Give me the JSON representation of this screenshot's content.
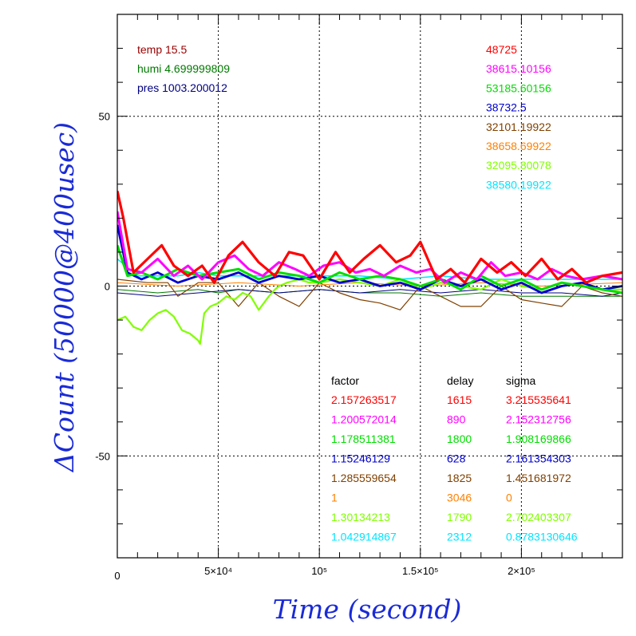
{
  "chart_data": {
    "type": "line",
    "xlabel": "Time (second)",
    "ylabel": "ΔCount (50000@400usec)",
    "xlim": [
      0,
      250000
    ],
    "ylim": [
      -80,
      80
    ],
    "x_tick_labels": [
      "0",
      "5×10⁴",
      "10⁵",
      "1.5×10⁵",
      "2×10⁵"
    ],
    "x_ticks": [
      0,
      50000,
      100000,
      150000,
      200000
    ],
    "y_tick_labels": [
      "-50",
      "0",
      "50"
    ],
    "y_ticks": [
      -50,
      0,
      50
    ],
    "grid": true,
    "env": [
      {
        "label": "temp 15.5",
        "color": "#990000"
      },
      {
        "label": "humi 4.699999809",
        "color": "#007a00"
      },
      {
        "label": "pres 1003.200012",
        "color": "#000080"
      }
    ],
    "baselines": [
      {
        "value": "48725",
        "color": "#ff0000"
      },
      {
        "value": "38615.10156",
        "color": "#ff00ff"
      },
      {
        "value": "53185.60156",
        "color": "#00dd00"
      },
      {
        "value": "38732.5",
        "color": "#0000cc"
      },
      {
        "value": "32101.19922",
        "color": "#804000"
      },
      {
        "value": "38658.69922",
        "color": "#ff8000"
      },
      {
        "value": "32095.80078",
        "color": "#80ff00"
      },
      {
        "value": "38580.19922",
        "color": "#00e5ff"
      }
    ],
    "table_headers": {
      "factor": "factor",
      "delay": "delay",
      "sigma": "sigma"
    },
    "table_rows": [
      {
        "factor": "2.157263517",
        "delay": "1615",
        "sigma": "3.215535641",
        "color": "#ff0000"
      },
      {
        "factor": "1.200572014",
        "delay": "890",
        "sigma": "2.152312756",
        "color": "#ff00ff"
      },
      {
        "factor": "1.178511381",
        "delay": "1800",
        "sigma": "1.908169866",
        "color": "#00dd00"
      },
      {
        "factor": "1.15246129",
        "delay": "628",
        "sigma": "2.161354303",
        "color": "#0000cc"
      },
      {
        "factor": "1.285559654",
        "delay": "1825",
        "sigma": "1.451681972",
        "color": "#804000"
      },
      {
        "factor": "1",
        "delay": "3046",
        "sigma": "0",
        "color": "#ff8000"
      },
      {
        "factor": "1.30134213",
        "delay": "1790",
        "sigma": "2.702403307",
        "color": "#80ff00"
      },
      {
        "factor": "1.042914867",
        "delay": "2312",
        "sigma": "0.8783130646",
        "color": "#00e5ff"
      }
    ],
    "series": [
      {
        "color": "#ff0000",
        "x": [
          0,
          3000,
          8000,
          15000,
          22000,
          28000,
          35000,
          42000,
          48000,
          55000,
          62000,
          70000,
          78000,
          85000,
          92000,
          100000,
          108000,
          115000,
          122000,
          130000,
          138000,
          145000,
          150000,
          158000,
          165000,
          172000,
          180000,
          188000,
          195000,
          202000,
          210000,
          218000,
          225000,
          232000,
          240000,
          250000
        ],
        "y": [
          28,
          20,
          4,
          8,
          12,
          6,
          3,
          6,
          1,
          9,
          13,
          7,
          3,
          10,
          9,
          2,
          10,
          4,
          8,
          12,
          7,
          9,
          13,
          2,
          5,
          1,
          8,
          4,
          7,
          3,
          8,
          2,
          5,
          1,
          3,
          4
        ]
      },
      {
        "color": "#ff00ff",
        "x": [
          0,
          5000,
          12000,
          20000,
          28000,
          35000,
          42000,
          50000,
          58000,
          65000,
          72000,
          80000,
          88000,
          95000,
          102000,
          110000,
          118000,
          125000,
          132000,
          140000,
          148000,
          155000,
          162000,
          170000,
          178000,
          185000,
          192000,
          200000,
          208000,
          215000,
          222000,
          230000,
          240000,
          250000
        ],
        "y": [
          22,
          5,
          4,
          8,
          3,
          6,
          2,
          7,
          9,
          5,
          3,
          7,
          5,
          3,
          6,
          7,
          4,
          5,
          3,
          6,
          4,
          5,
          1,
          4,
          2,
          7,
          3,
          4,
          2,
          5,
          3,
          2,
          3,
          2
        ]
      },
      {
        "color": "#00dd00",
        "x": [
          0,
          5000,
          12000,
          20000,
          30000,
          40000,
          50000,
          60000,
          70000,
          80000,
          90000,
          100000,
          110000,
          120000,
          130000,
          140000,
          150000,
          160000,
          170000,
          180000,
          190000,
          200000,
          210000,
          220000,
          230000,
          240000,
          250000
        ],
        "y": [
          12,
          3,
          4,
          2,
          5,
          3,
          4,
          5,
          2,
          4,
          3,
          1,
          4,
          2,
          3,
          2,
          0,
          2,
          -1,
          3,
          0,
          2,
          -1,
          1,
          0,
          -1,
          -2
        ]
      },
      {
        "color": "#0000cc",
        "x": [
          0,
          5000,
          12000,
          20000,
          30000,
          40000,
          50000,
          60000,
          70000,
          80000,
          90000,
          100000,
          110000,
          120000,
          130000,
          140000,
          150000,
          160000,
          170000,
          180000,
          190000,
          200000,
          210000,
          220000,
          230000,
          240000,
          250000
        ],
        "y": [
          18,
          4,
          2,
          4,
          1,
          3,
          2,
          4,
          1,
          3,
          2,
          3,
          1,
          2,
          0,
          1,
          -1,
          2,
          0,
          2,
          -1,
          1,
          -2,
          0,
          1,
          -1,
          0
        ]
      },
      {
        "color": "#804000",
        "x": [
          0,
          15000,
          25000,
          30000,
          40000,
          50000,
          60000,
          70000,
          80000,
          90000,
          100000,
          110000,
          120000,
          130000,
          140000,
          150000,
          160000,
          170000,
          180000,
          190000,
          200000,
          210000,
          220000,
          230000,
          240000,
          250000
        ],
        "y": [
          2,
          1,
          1,
          -3,
          1,
          1,
          -6,
          1,
          -3,
          -6,
          1,
          -2,
          -4,
          -5,
          -7,
          0,
          -3,
          -6,
          -6,
          0,
          -4,
          -5,
          -6,
          0,
          -2,
          -3
        ]
      },
      {
        "color": "#ff8000",
        "x": [
          0,
          30000,
          60000,
          90000,
          120000,
          150000,
          180000,
          210000,
          250000
        ],
        "y": [
          1,
          0,
          1,
          0,
          1,
          0,
          1,
          0,
          1
        ]
      },
      {
        "color": "#80ff00",
        "x": [
          0,
          4000,
          8000,
          12000,
          16000,
          20000,
          24000,
          28000,
          32000,
          36000,
          40000,
          41000,
          43000,
          46000,
          50000,
          54000,
          58000,
          62000,
          66000,
          70000,
          75000,
          78000,
          80000,
          84000,
          90000,
          95000,
          100000,
          110000,
          120000,
          130000,
          140000,
          150000,
          160000,
          170000,
          180000,
          190000,
          200000,
          210000,
          220000,
          230000,
          240000,
          250000
        ],
        "y": [
          -10,
          -9,
          -12,
          -13,
          -10,
          -8,
          -7,
          -9,
          -13,
          -14,
          -16,
          -17,
          -8,
          -6,
          -5,
          -3,
          -4,
          -2,
          -3,
          -7,
          -3,
          -1,
          0,
          1,
          2,
          1,
          1,
          2,
          1,
          0,
          2,
          -1,
          1,
          0,
          -1,
          2,
          0,
          -1,
          1,
          0,
          -1,
          -1
        ]
      },
      {
        "color": "#00e5ff",
        "x": [
          0,
          10000,
          20000,
          30000,
          40000,
          50000,
          60000,
          80000,
          100000,
          120000,
          140000,
          160000,
          180000,
          200000,
          220000,
          250000
        ],
        "y": [
          8,
          3,
          3,
          3,
          4,
          3,
          3,
          3,
          3,
          3,
          2,
          3,
          2,
          2,
          2,
          2
        ]
      },
      {
        "color": "#000080",
        "x": [
          0,
          20000,
          40000,
          60000,
          80000,
          100000,
          120000,
          140000,
          160000,
          180000,
          200000,
          220000,
          240000,
          250000
        ],
        "y": [
          -2,
          -3,
          -2,
          -1,
          -2,
          -1,
          -2,
          -1,
          -2,
          -1,
          -2,
          -2,
          -3,
          -2
        ]
      },
      {
        "color": "#007a00",
        "x": [
          0,
          20000,
          40000,
          50000,
          60000,
          80000,
          100000,
          120000,
          140000,
          160000,
          180000,
          200000,
          220000,
          250000
        ],
        "y": [
          -1,
          -2,
          -1,
          -2,
          -1,
          -2,
          -1,
          -2,
          -2,
          -3,
          -2,
          -3,
          -3,
          -3
        ]
      }
    ]
  }
}
